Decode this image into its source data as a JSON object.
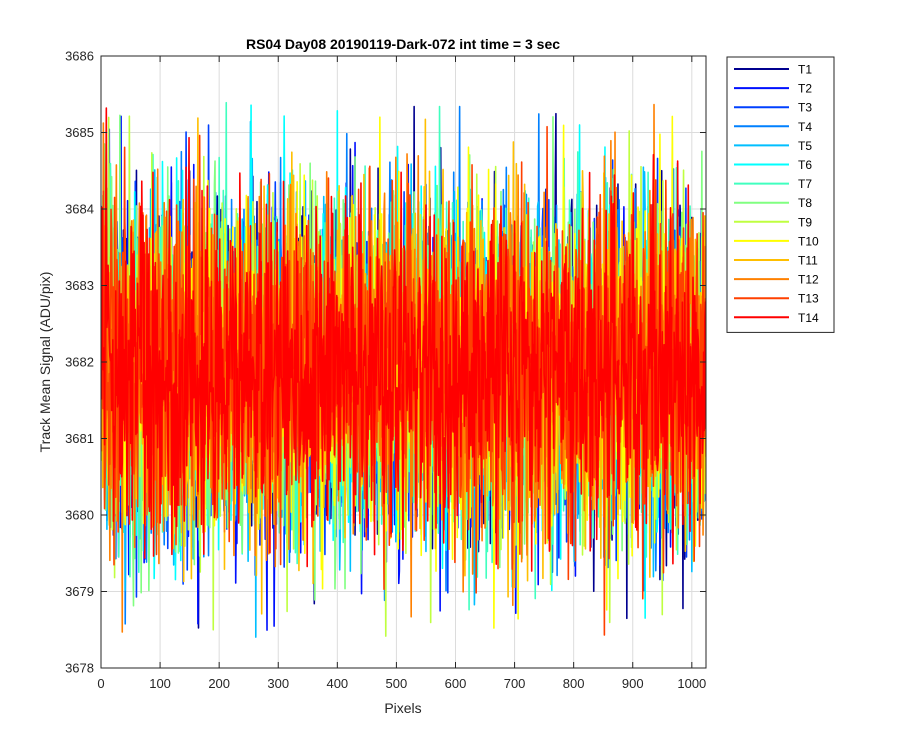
{
  "chart_data": {
    "type": "line",
    "title": "RS04 Day08 20190119-Dark-072 int time = 3 sec",
    "xlabel": "Pixels",
    "ylabel": "Track Mean Signal (ADU/pix)",
    "xlim": [
      0,
      1024
    ],
    "ylim": [
      3678,
      3686
    ],
    "xticks": [
      0,
      100,
      200,
      300,
      400,
      500,
      600,
      700,
      800,
      900,
      1000
    ],
    "yticks": [
      3678,
      3679,
      3680,
      3681,
      3682,
      3683,
      3684,
      3685,
      3686
    ],
    "grid": true,
    "legend_location": "outside-top-right",
    "series_generation": {
      "x_start": 1,
      "x_end": 1024,
      "mean": 3681.9,
      "typical_range": [
        3679.3,
        3684.6
      ],
      "extreme_range": [
        3678.1,
        3685.55
      ]
    },
    "series": [
      {
        "name": "T1",
        "color": "#00008F"
      },
      {
        "name": "T2",
        "color": "#0010FF"
      },
      {
        "name": "T3",
        "color": "#0040FF"
      },
      {
        "name": "T4",
        "color": "#0080FF"
      },
      {
        "name": "T5",
        "color": "#00BFFF"
      },
      {
        "name": "T6",
        "color": "#00FFFF"
      },
      {
        "name": "T7",
        "color": "#40FFBF"
      },
      {
        "name": "T8",
        "color": "#80FF80"
      },
      {
        "name": "T9",
        "color": "#BFFF40"
      },
      {
        "name": "T10",
        "color": "#FFFF00"
      },
      {
        "name": "T11",
        "color": "#FFBF00"
      },
      {
        "name": "T12",
        "color": "#FF8000"
      },
      {
        "name": "T13",
        "color": "#FF4000"
      },
      {
        "name": "T14",
        "color": "#FF0000"
      }
    ]
  }
}
